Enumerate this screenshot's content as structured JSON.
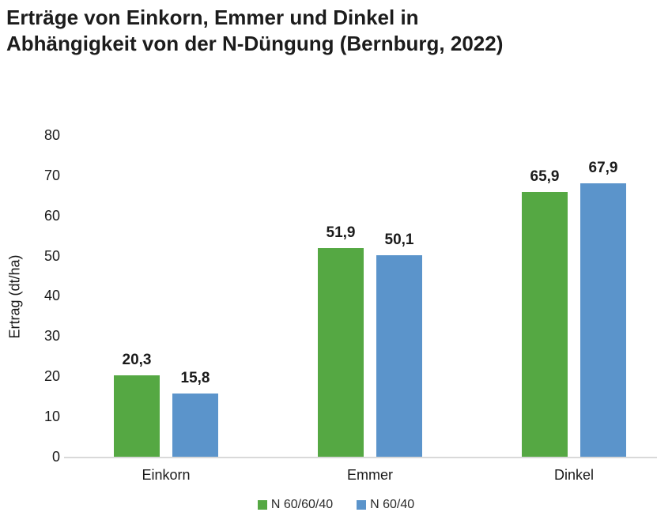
{
  "title": {
    "line1": "Erträge von Einkorn, Emmer und Dinkel in",
    "line2": "Abhängigkeit von der N-Düngung (Bernburg, 2022)"
  },
  "chart_data": {
    "type": "bar",
    "title": "Erträge von Einkorn, Emmer und Dinkel in Abhängigkeit von der N-Düngung (Bernburg, 2022)",
    "categories": [
      "Einkorn",
      "Emmer",
      "Dinkel"
    ],
    "series": [
      {
        "name": "N 60/60/40",
        "color": "#55a843",
        "values": [
          20.3,
          51.9,
          65.9
        ],
        "value_labels": [
          "20,3",
          "51,9",
          "65,9"
        ]
      },
      {
        "name": "N 60/40",
        "color": "#5b94cb",
        "values": [
          15.8,
          50.1,
          67.9
        ],
        "value_labels": [
          "15,8",
          "50,1",
          "67,9"
        ]
      }
    ],
    "xlabel": "",
    "ylabel": "Ertrag (dt/ha)",
    "ylim": [
      0,
      80
    ],
    "yticks": [
      0,
      10,
      20,
      30,
      40,
      50,
      60,
      70,
      80
    ],
    "grid": false,
    "legend_position": "bottom",
    "background": "#ffffff",
    "axis_line_color": "#d9d9d9",
    "text_color": "#1a1a1a"
  }
}
